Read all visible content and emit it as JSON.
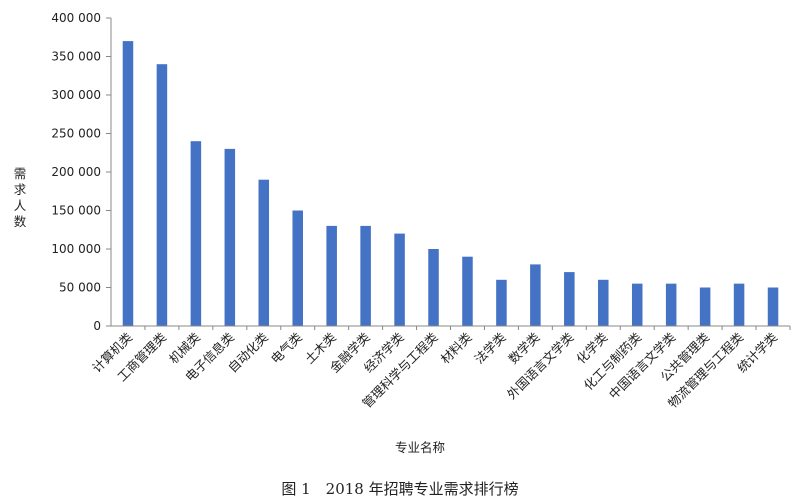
{
  "chart_data": {
    "type": "bar",
    "title": "",
    "caption": "图 1　2018 年招聘专业需求排行榜",
    "xlabel": "专业名称",
    "ylabel": "需求人数",
    "ylim": [
      0,
      400000
    ],
    "yticks": [
      0,
      50000,
      100000,
      150000,
      200000,
      250000,
      300000,
      350000,
      400000
    ],
    "ytick_labels": [
      "0",
      "50 000",
      "100 000",
      "150 000",
      "200 000",
      "250 000",
      "300 000",
      "350 000",
      "400 000"
    ],
    "grid": false,
    "bar_color": "#4472C4",
    "categories": [
      "计算机类",
      "工商管理类",
      "机械类",
      "电子信息类",
      "自动化类",
      "电气类",
      "土木类",
      "金融学类",
      "经济学类",
      "管理科学与工程类",
      "材料类",
      "法学类",
      "数学类",
      "外国语言文学类",
      "化学类",
      "化工与制药类",
      "中国语言文学类",
      "公共管理类",
      "物流管理与工程类",
      "统计学类"
    ],
    "values": [
      370000,
      340000,
      240000,
      230000,
      190000,
      150000,
      130000,
      130000,
      120000,
      100000,
      90000,
      60000,
      80000,
      70000,
      60000,
      55000,
      55000,
      50000,
      55000,
      50000
    ]
  }
}
